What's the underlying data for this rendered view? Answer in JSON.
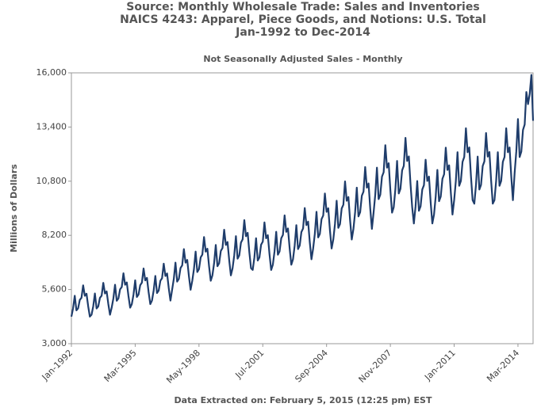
{
  "chart_data": {
    "type": "line",
    "title": [
      "Source: Monthly Wholesale Trade: Sales and Inventories",
      "NAICS 4243: Apparel, Piece Goods, and Notions: U.S. Total",
      "Jan-1992 to Dec-2014"
    ],
    "subtitle": "Not Seasonally Adjusted Sales - Monthly",
    "y_label": "Millions of Dollars",
    "footer": "Data Extracted on: February 5, 2015 (12:25 pm) EST",
    "grid": false,
    "ylim": [
      3000,
      16000
    ],
    "yticks": [
      {
        "value": 3000,
        "label": "3,000"
      },
      {
        "value": 5600,
        "label": "5,600"
      },
      {
        "value": 8200,
        "label": "8,200"
      },
      {
        "value": 10800,
        "label": "10,800"
      },
      {
        "value": 13400,
        "label": "13,400"
      },
      {
        "value": 16000,
        "label": "16,000"
      }
    ],
    "categories": [
      "Jan-1992",
      null,
      null,
      null,
      null,
      null,
      null,
      null,
      null,
      null,
      null,
      null,
      null,
      null,
      null,
      null,
      null,
      null,
      null,
      null,
      null,
      null,
      null,
      null,
      null,
      null,
      null,
      null,
      null,
      null,
      null,
      null,
      null,
      null,
      null,
      null,
      null,
      null,
      "Mar-1995",
      null,
      null,
      null,
      null,
      null,
      null,
      null,
      null,
      null,
      null,
      null,
      null,
      null,
      null,
      null,
      null,
      null,
      null,
      null,
      null,
      null,
      null,
      null,
      null,
      null,
      null,
      null,
      null,
      null,
      null,
      null,
      null,
      null,
      null,
      null,
      null,
      null,
      "May-1998",
      null,
      null,
      null,
      null,
      null,
      null,
      null,
      null,
      null,
      null,
      null,
      null,
      null,
      null,
      null,
      null,
      null,
      null,
      null,
      null,
      null,
      null,
      null,
      null,
      null,
      null,
      null,
      null,
      null,
      null,
      null,
      null,
      null,
      null,
      null,
      null,
      null,
      "Jul-2001",
      null,
      null,
      null,
      null,
      null,
      null,
      null,
      null,
      null,
      null,
      null,
      null,
      null,
      null,
      null,
      null,
      null,
      null,
      null,
      null,
      null,
      null,
      null,
      null,
      null,
      null,
      null,
      null,
      null,
      null,
      null,
      null,
      null,
      null,
      null,
      null,
      null,
      "Sep-2004",
      null,
      null,
      null,
      null,
      null,
      null,
      null,
      null,
      null,
      null,
      null,
      null,
      null,
      null,
      null,
      null,
      null,
      null,
      null,
      null,
      null,
      null,
      null,
      null,
      null,
      null,
      null,
      null,
      null,
      null,
      null,
      null,
      null,
      null,
      null,
      null,
      null,
      "Nov-2007",
      null,
      null,
      null,
      null,
      null,
      null,
      null,
      null,
      null,
      null,
      null,
      null,
      null,
      null,
      null,
      null,
      null,
      null,
      null,
      null,
      null,
      null,
      null,
      null,
      null,
      null,
      null,
      null,
      null,
      null,
      null,
      null,
      null,
      null,
      null,
      null,
      null,
      "Jan-2011",
      null,
      null,
      null,
      null,
      null,
      null,
      null,
      null,
      null,
      null,
      null,
      null,
      null,
      null,
      null,
      null,
      null,
      null,
      null,
      null,
      null,
      null,
      null,
      null,
      null,
      null,
      null,
      null,
      null,
      null,
      null,
      null,
      null,
      null,
      null,
      null,
      null,
      "Mar-2014",
      null,
      null,
      null,
      null,
      null,
      null,
      null,
      null,
      null
    ],
    "series": [
      {
        "name": "Sales",
        "color": "#1f3d6b",
        "values": [
          4300,
          4700,
          5300,
          4600,
          4700,
          5100,
          5200,
          5800,
          5300,
          5400,
          4800,
          4300,
          4390,
          4790,
          5410,
          4690,
          4790,
          5200,
          5300,
          5920,
          5410,
          5510,
          4900,
          4390,
          4730,
          5170,
          5830,
          5060,
          5170,
          5610,
          5720,
          6380,
          5830,
          5940,
          5280,
          4730,
          4900,
          5360,
          6040,
          5240,
          5360,
          5810,
          5930,
          6610,
          6040,
          6160,
          5470,
          4900,
          5070,
          5550,
          6250,
          5430,
          5550,
          6020,
          6140,
          6840,
          6250,
          6370,
          5660,
          5070,
          5590,
          6110,
          6890,
          5980,
          6110,
          6630,
          6760,
          7540,
          6890,
          7020,
          6240,
          5590,
          6020,
          6580,
          7420,
          6440,
          6580,
          7140,
          7280,
          8120,
          7420,
          7560,
          6720,
          6020,
          6280,
          6860,
          7740,
          6720,
          6860,
          7450,
          7590,
          8470,
          7740,
          7880,
          7010,
          6280,
          6620,
          7240,
          8160,
          7080,
          7240,
          7850,
          8010,
          8930,
          8160,
          8320,
          7390,
          6620,
          6540,
          7140,
          8060,
          6990,
          7140,
          7750,
          7900,
          8820,
          8060,
          8210,
          7300,
          6540,
          6790,
          7430,
          8370,
          7270,
          7430,
          8060,
          8220,
          9160,
          8370,
          8530,
          7580,
          6790,
          7050,
          7710,
          8690,
          7540,
          7710,
          8360,
          8530,
          9510,
          8690,
          8860,
          7870,
          7050,
          7570,
          8270,
          9330,
          8100,
          8270,
          8980,
          9150,
          10210,
          9330,
          9500,
          8450,
          7570,
          8000,
          8740,
          9860,
          8560,
          8740,
          9490,
          9670,
          10790,
          9860,
          10040,
          8930,
          8000,
          8510,
          9310,
          10490,
          9110,
          9310,
          10100,
          10300,
          11480,
          10490,
          10690,
          9500,
          8510,
          9290,
          10150,
          11450,
          9940,
          10150,
          11020,
          11230,
          12530,
          11450,
          11660,
          10370,
          9290,
          9550,
          10430,
          11770,
          10210,
          10430,
          11320,
          11540,
          12880,
          11770,
          11990,
          10660,
          9550,
          8770,
          9590,
          10810,
          9380,
          9590,
          10400,
          10610,
          11830,
          10810,
          11020,
          9790,
          8770,
          9200,
          10060,
          11340,
          9840,
          10060,
          10910,
          11130,
          12410,
          11340,
          11560,
          10270,
          9200,
          9890,
          10810,
          12190,
          10580,
          10810,
          11730,
          11960,
          13340,
          12190,
          12420,
          11040,
          9890,
          9720,
          10620,
          11980,
          10400,
          10620,
          11530,
          11750,
          13110,
          11980,
          12200,
          10850,
          9720,
          9890,
          10810,
          12190,
          10580,
          10810,
          11730,
          11960,
          13340,
          12190,
          12420,
          11040,
          9890,
          11180,
          12220,
          13780,
          11960,
          12220,
          13260,
          13520,
          15080,
          14500,
          15000,
          15900,
          13700
        ]
      }
    ]
  }
}
